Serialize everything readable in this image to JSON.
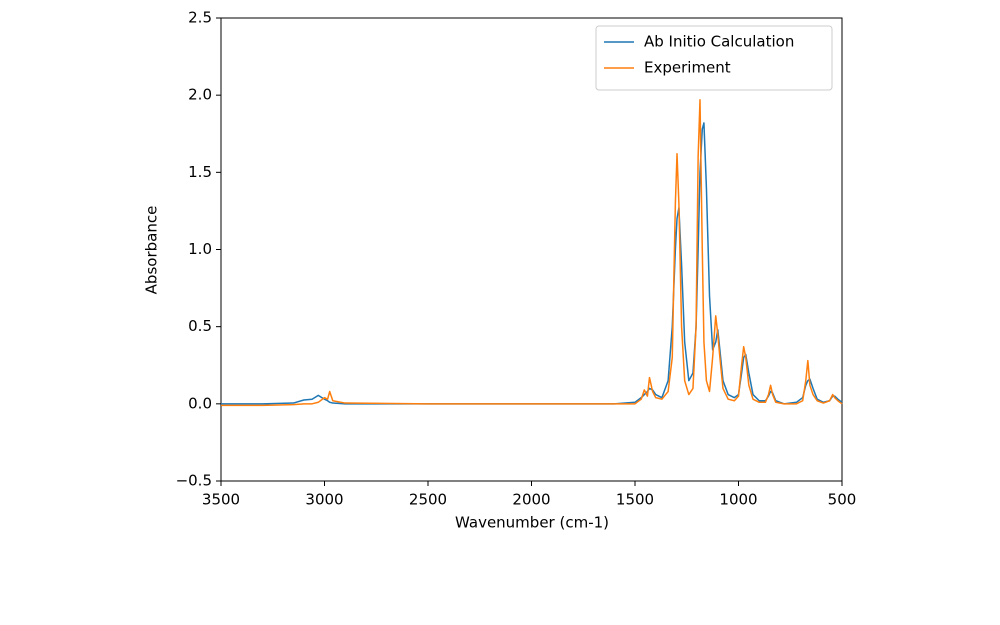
{
  "chart_data": {
    "type": "line",
    "xlabel": "Wavenumber (cm-1)",
    "ylabel": "Absorbance",
    "x": [
      3500,
      3300,
      3150,
      3100,
      3060,
      3030,
      3000,
      2985,
      2975,
      2960,
      2900,
      2500,
      2000,
      1600,
      1500,
      1470,
      1455,
      1440,
      1430,
      1415,
      1400,
      1370,
      1340,
      1320,
      1305,
      1297,
      1288,
      1275,
      1260,
      1240,
      1220,
      1205,
      1195,
      1186,
      1175,
      1167,
      1155,
      1140,
      1125,
      1110,
      1100,
      1090,
      1075,
      1050,
      1020,
      1000,
      985,
      975,
      965,
      950,
      930,
      900,
      870,
      855,
      845,
      835,
      820,
      780,
      720,
      690,
      675,
      665,
      655,
      640,
      620,
      590,
      560,
      545,
      535,
      520,
      500
    ],
    "series": [
      {
        "name": "Ab Initio Calculation",
        "color": "#1f77b4",
        "values": [
          0,
          0,
          0.005,
          0.025,
          0.03,
          0.055,
          0.03,
          0.02,
          0.01,
          0.005,
          0,
          0,
          0,
          0,
          0.01,
          0.04,
          0.06,
          0.08,
          0.1,
          0.09,
          0.06,
          0.04,
          0.15,
          0.5,
          1.0,
          1.2,
          1.27,
          0.9,
          0.4,
          0.15,
          0.2,
          0.5,
          1.0,
          1.5,
          1.78,
          1.82,
          1.4,
          0.7,
          0.35,
          0.4,
          0.48,
          0.35,
          0.15,
          0.06,
          0.04,
          0.06,
          0.2,
          0.3,
          0.32,
          0.2,
          0.06,
          0.02,
          0.02,
          0.05,
          0.08,
          0.07,
          0.02,
          0,
          0.01,
          0.04,
          0.12,
          0.15,
          0.16,
          0.1,
          0.03,
          0.01,
          0.02,
          0.05,
          0.05,
          0.03,
          0.01
        ]
      },
      {
        "name": "Experiment",
        "color": "#ff7f0e",
        "values": [
          -0.01,
          -0.01,
          -0.005,
          0,
          0,
          0.01,
          0.04,
          0.03,
          0.08,
          0.02,
          0.005,
          0,
          0,
          0,
          0,
          0.03,
          0.09,
          0.05,
          0.17,
          0.08,
          0.04,
          0.03,
          0.08,
          0.3,
          1.3,
          1.62,
          1.3,
          0.5,
          0.15,
          0.06,
          0.1,
          0.5,
          1.6,
          1.97,
          1.0,
          0.4,
          0.15,
          0.08,
          0.3,
          0.57,
          0.45,
          0.3,
          0.1,
          0.03,
          0.02,
          0.05,
          0.25,
          0.37,
          0.3,
          0.12,
          0.03,
          0.01,
          0.01,
          0.06,
          0.12,
          0.06,
          0.01,
          0,
          0,
          0.02,
          0.15,
          0.28,
          0.12,
          0.06,
          0.02,
          0.005,
          0.02,
          0.06,
          0.04,
          0.02,
          0
        ]
      }
    ],
    "xlim": [
      3500,
      500
    ],
    "xticks": [
      3500,
      3000,
      2500,
      2000,
      1500,
      1000,
      500
    ],
    "ylim": [
      -0.5,
      2.5
    ],
    "yticks": [
      {
        "value": -0.5,
        "label": "−0.5"
      },
      {
        "value": 0,
        "label": "0.0"
      },
      0.5,
      {
        "value": 1,
        "label": "1.0"
      },
      1.5,
      {
        "value": 2,
        "label": "2.0"
      },
      2.5
    ],
    "grid": false,
    "legend": "upper right"
  }
}
